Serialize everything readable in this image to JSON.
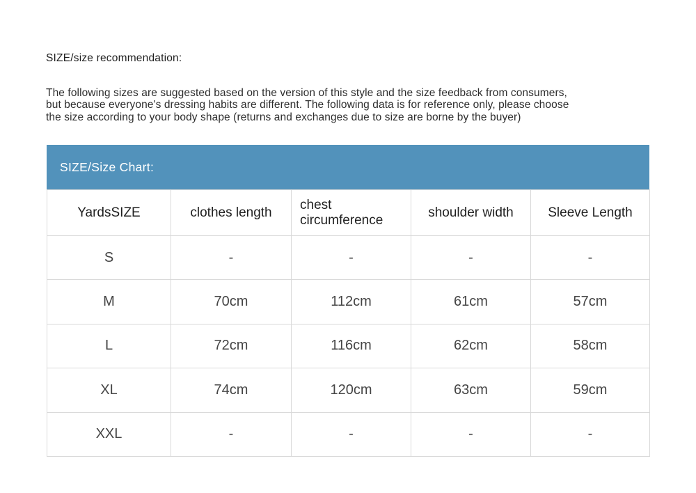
{
  "page": {
    "section_title": "SIZE/size recommendation:",
    "intro_lines": [
      "The following sizes are suggested based on the version of this style and the size feedback from consumers,",
      "but because everyone's dressing habits are different. The following data is for reference only, please choose",
      "the size according to your body shape (returns and exchanges due to size are borne by the buyer)"
    ]
  },
  "banner": {
    "label": "SIZE/Size Chart:",
    "background_color": "#5292bb",
    "text_color": "#ffffff"
  },
  "table": {
    "border_color": "#d9d9d9",
    "columns": [
      "YardsSIZE",
      "clothes length",
      "chest circumference",
      "shoulder width",
      "Sleeve Length"
    ],
    "rows": [
      [
        "S",
        "-",
        "-",
        "-",
        "-"
      ],
      [
        "M",
        "70cm",
        "112cm",
        "61cm",
        "57cm"
      ],
      [
        "L",
        "72cm",
        "116cm",
        "62cm",
        "58cm"
      ],
      [
        "XL",
        "74cm",
        "120cm",
        "63cm",
        "59cm"
      ],
      [
        "XXL",
        "-",
        "-",
        "-",
        "-"
      ]
    ]
  }
}
